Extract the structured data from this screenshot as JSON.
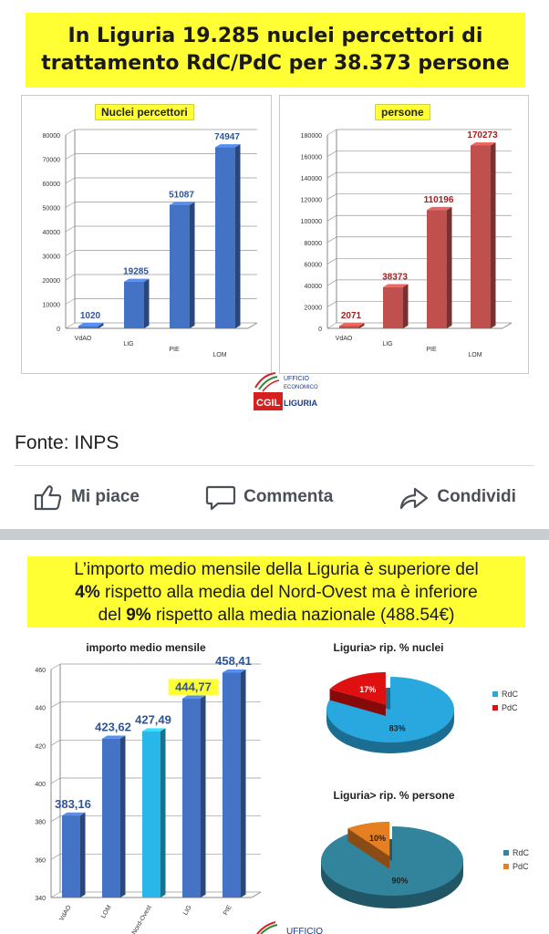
{
  "post1": {
    "banner_line1": "In Liguria 19.285 nuclei percettori di",
    "banner_line2": "trattamento RdC/PdC per 38.373 persone",
    "logo_line1": "UFFICIO",
    "logo_line2": "ECONOMICO",
    "logo_cgil": "CGIL",
    "logo_region": "LIGURIA",
    "source": "Fonte: INPS"
  },
  "actions": {
    "like_label": "Mi piace",
    "comment_label": "Commenta",
    "share_label": "Condividi"
  },
  "post2": {
    "banner_line1": "L’importo medio mensile della Liguria è superiore del",
    "banner_line2_bold": "4%",
    "banner_line2_rest": " rispetto alla media del Nord-Ovest ma è inferiore",
    "banner_line3_pre": "del ",
    "banner_line3_bold": "9%",
    "banner_line3_rest": " rispetto alla media nazionale (488.54€)",
    "logo_line1": "UFFICIO"
  },
  "colors": {
    "banner": "#ffff33",
    "blue_bar": "#4472c4",
    "red_bar": "#c0504d",
    "cyan_bar": "#29b6e8",
    "pie_rdc": "#29a8e0",
    "pie_pdc": "#e01010",
    "pie2_rdc": "#31849b",
    "pie2_pdc": "#e67e22"
  },
  "chart_data": [
    {
      "type": "bar",
      "title": "Nuclei percettori",
      "categories": [
        "VdAO",
        "LIG",
        "PIE",
        "LOM"
      ],
      "values": [
        1020,
        19285,
        51087,
        74947
      ],
      "ylim": [
        0,
        80000
      ],
      "yticks": [
        0,
        10000,
        20000,
        30000,
        40000,
        50000,
        60000,
        70000,
        80000
      ],
      "data_labels": [
        "1020",
        "19285",
        "51087",
        "74947"
      ],
      "grid": true
    },
    {
      "type": "bar",
      "title": "persone",
      "categories": [
        "VdAO",
        "LIG",
        "PIE",
        "LOM"
      ],
      "values": [
        2071,
        38373,
        110196,
        170273
      ],
      "ylim": [
        0,
        180000
      ],
      "yticks": [
        0,
        20000,
        40000,
        60000,
        80000,
        100000,
        120000,
        140000,
        160000,
        180000
      ],
      "data_labels": [
        "2071",
        "38373",
        "110196",
        "170273"
      ],
      "grid": true
    },
    {
      "type": "bar",
      "title": "importo medio mensile",
      "categories": [
        "VdAO",
        "LOM",
        "Nord-Ovest",
        "LIG",
        "PIE"
      ],
      "values": [
        383.16,
        423.62,
        427.49,
        444.77,
        458.41
      ],
      "data_labels": [
        "383,16",
        "423,62",
        "427,49",
        "444,77",
        "458,41"
      ],
      "ylim": [
        340,
        460
      ],
      "yticks": [
        340,
        360,
        380,
        400,
        420,
        440,
        460
      ],
      "highlight": [
        "Nord-Ovest",
        "LIG"
      ],
      "grid": true
    },
    {
      "type": "pie",
      "title": "Liguria> rip. % nuclei",
      "slices": [
        {
          "name": "RdC",
          "value": 83,
          "label": "83%"
        },
        {
          "name": "PdC",
          "value": 17,
          "label": "17%"
        }
      ],
      "legend": "right"
    },
    {
      "type": "pie",
      "title": "Liguria> rip. % persone",
      "slices": [
        {
          "name": "RdC",
          "value": 90,
          "label": "90%"
        },
        {
          "name": "PdC",
          "value": 10,
          "label": "10%"
        }
      ],
      "legend": "right"
    }
  ]
}
